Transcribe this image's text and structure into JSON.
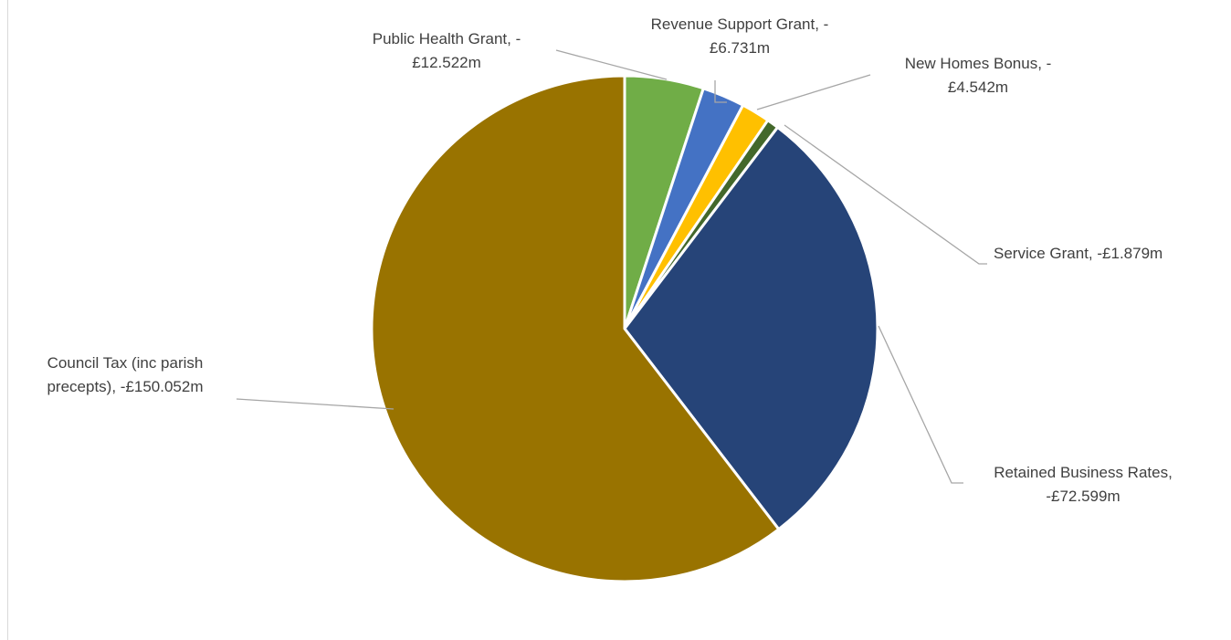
{
  "chart_data": {
    "type": "pie",
    "title": "",
    "series": [
      {
        "values": [
          12.522,
          6.731,
          4.542,
          1.879,
          72.599,
          150.052
        ],
        "categories": [
          "Public Health Grant",
          "Revenue Support Grant",
          "New Homes Bonus",
          "Service Grant",
          "Retained Business Rates",
          "Council Tax (inc parish precepts)"
        ],
        "colors": [
          "#70ad47",
          "#4472c4",
          "#ffc000",
          "#43682b",
          "#264478",
          "#997300"
        ]
      }
    ],
    "data_labels": [
      {
        "lines": [
          "Public Health Grant, -",
          "£12.522m"
        ]
      },
      {
        "lines": [
          "Revenue Support Grant, -",
          "£6.731m"
        ]
      },
      {
        "lines": [
          "New Homes Bonus, -",
          "£4.542m"
        ]
      },
      {
        "lines": [
          "Service Grant, -£1.879m"
        ]
      },
      {
        "lines": [
          "Retained Business Rates,",
          "-£72.599m"
        ]
      },
      {
        "lines": [
          "Council Tax (inc parish",
          "precepts), -£150.052m"
        ]
      }
    ],
    "legend": "none",
    "start_angle_deg": 0,
    "direction": "clockwise",
    "slice_border_color": "#ffffff",
    "leader_line_color": "#a6a6a6"
  }
}
